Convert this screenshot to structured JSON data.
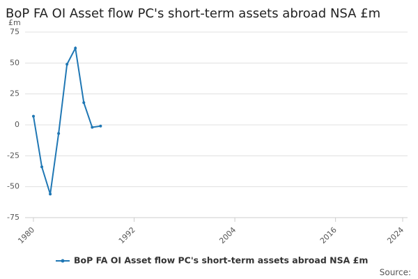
{
  "chart_data": {
    "type": "line",
    "title": "BoP FA OI Asset flow PC's short-term assets abroad NSA £m",
    "y_unit": "£m",
    "source": "Source:",
    "x": [
      1980,
      1981,
      1982,
      1983,
      1984,
      1985,
      1986,
      1987,
      1988
    ],
    "series": [
      {
        "name": "BoP FA OI Asset flow PC's short-term assets abroad NSA £m",
        "color": "#1f77b4",
        "values": [
          7,
          -34,
          -56,
          -7,
          49,
          62,
          18,
          -2,
          -1
        ]
      }
    ],
    "xlim": [
      1980,
      2024
    ],
    "xticks": [
      1980,
      1992,
      2004,
      2016,
      2024
    ],
    "ylim": [
      -75,
      75
    ],
    "yticks": [
      -75,
      -50,
      -25,
      0,
      25,
      50,
      75
    ],
    "grid": true
  }
}
